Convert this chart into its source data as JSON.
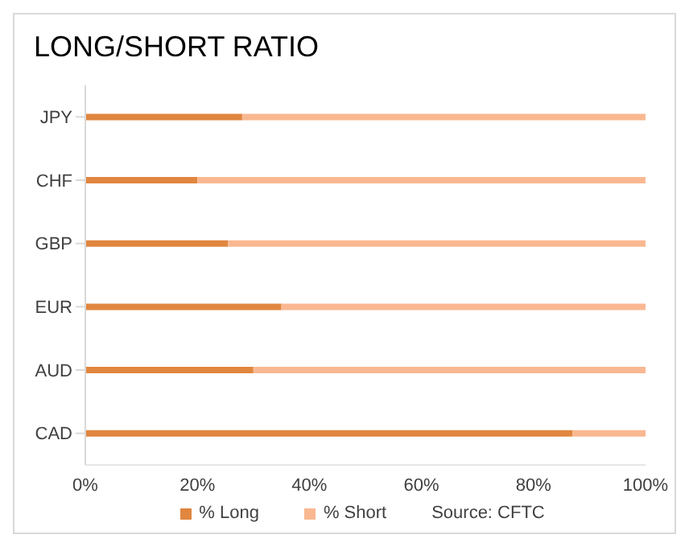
{
  "chart_data": {
    "type": "bar",
    "title": "LONG/SHORT RATIO",
    "orientation": "horizontal",
    "stacked": true,
    "categories": [
      "JPY",
      "CHF",
      "GBP",
      "EUR",
      "AUD",
      "CAD"
    ],
    "series": [
      {
        "name": "% Long",
        "color": "#e0863f",
        "values": [
          28,
          20,
          25.5,
          35,
          30,
          87
        ]
      },
      {
        "name": "% Short",
        "color": "#f9b891",
        "values": [
          72,
          80,
          74.5,
          65,
          70,
          13
        ]
      }
    ],
    "xlim": [
      0,
      100
    ],
    "xticks": [
      {
        "value": 0,
        "label": "0%"
      },
      {
        "value": 20,
        "label": "20%"
      },
      {
        "value": 40,
        "label": "40%"
      },
      {
        "value": 60,
        "label": "60%"
      },
      {
        "value": 80,
        "label": "80%"
      },
      {
        "value": 100,
        "label": "100%"
      }
    ],
    "legend": "bottom",
    "grid": false,
    "annotations": [
      "Source: CFTC"
    ]
  }
}
